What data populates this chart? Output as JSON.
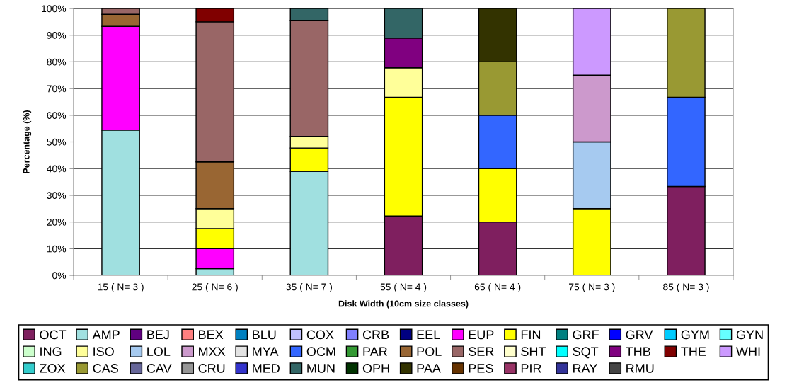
{
  "chart_data": {
    "type": "bar",
    "stacked": true,
    "xlabel": "Disk Width (10cm size classes)",
    "ylabel": "Percentage (%)",
    "categories": [
      "15 ( N= 3 )",
      "25 ( N= 6 )",
      "35 ( N= 7 )",
      "55 ( N= 4 )",
      "65 ( N= 4 )",
      "75 ( N= 3 )",
      "85 ( N= 3 )"
    ],
    "ylim": [
      0,
      100
    ],
    "yticks": [
      {
        "value": 0,
        "label": "0%"
      },
      {
        "value": 10,
        "label": "10%"
      },
      {
        "value": 20,
        "label": "20%"
      },
      {
        "value": 30,
        "label": "30%"
      },
      {
        "value": 40,
        "label": "40%"
      },
      {
        "value": 50,
        "label": "50%"
      },
      {
        "value": 60,
        "label": "60%"
      },
      {
        "value": 70,
        "label": "70%"
      },
      {
        "value": 80,
        "label": "80%"
      },
      {
        "value": 90,
        "label": "90%"
      },
      {
        "value": 100,
        "label": "100%"
      }
    ],
    "grid": "y",
    "legend": "bottom",
    "series": [
      {
        "name": "OCT",
        "color": "#7f1f5f",
        "values": [
          null,
          null,
          null,
          22.2,
          20,
          null,
          33.3
        ]
      },
      {
        "name": "AMP",
        "color": "#a0e0e0",
        "values": [
          54.4,
          2.5,
          39.0,
          null,
          null,
          null,
          null
        ]
      },
      {
        "name": "BEJ",
        "color": "#600080",
        "values": [
          null,
          null,
          null,
          null,
          null,
          null,
          null
        ]
      },
      {
        "name": "BEX",
        "color": "#ff8080",
        "values": [
          null,
          null,
          null,
          null,
          null,
          null,
          null
        ]
      },
      {
        "name": "BLU",
        "color": "#0080c0",
        "values": [
          null,
          null,
          null,
          null,
          null,
          null,
          null
        ]
      },
      {
        "name": "COX",
        "color": "#c0c0ff",
        "values": [
          null,
          null,
          null,
          null,
          null,
          null,
          null
        ]
      },
      {
        "name": "CRB",
        "color": "#8080ff",
        "values": [
          null,
          null,
          null,
          null,
          null,
          null,
          null
        ]
      },
      {
        "name": "EEL",
        "color": "#000080",
        "values": [
          null,
          null,
          null,
          null,
          null,
          null,
          null
        ]
      },
      {
        "name": "EUP",
        "color": "#ff00ff",
        "values": [
          38.9,
          7.5,
          null,
          null,
          null,
          null,
          null
        ]
      },
      {
        "name": "FIN",
        "color": "#ffff00",
        "values": [
          null,
          7.5,
          8.7,
          44.5,
          20,
          25,
          null
        ]
      },
      {
        "name": "GRF",
        "color": "#008080",
        "values": [
          null,
          null,
          null,
          null,
          null,
          null,
          null
        ]
      },
      {
        "name": "GRV",
        "color": "#0000ff",
        "values": [
          null,
          null,
          null,
          null,
          null,
          null,
          null
        ]
      },
      {
        "name": "GYM",
        "color": "#00ccff",
        "values": [
          null,
          null,
          null,
          null,
          null,
          null,
          null
        ]
      },
      {
        "name": "GYN",
        "color": "#66ffff",
        "values": [
          null,
          null,
          null,
          null,
          null,
          null,
          null
        ]
      },
      {
        "name": "ING",
        "color": "#ccffcc",
        "values": [
          null,
          null,
          null,
          null,
          null,
          null,
          null
        ]
      },
      {
        "name": "ISO",
        "color": "#ffff99",
        "values": [
          null,
          7.5,
          4.4,
          11.1,
          null,
          null,
          null
        ]
      },
      {
        "name": "LOL",
        "color": "#a6caf0",
        "values": [
          null,
          null,
          null,
          null,
          null,
          25,
          null
        ]
      },
      {
        "name": "MXX",
        "color": "#cc99cc",
        "values": [
          null,
          null,
          null,
          null,
          null,
          25,
          null
        ]
      },
      {
        "name": "MYA",
        "color": "#e3e3e3",
        "values": [
          null,
          null,
          null,
          null,
          null,
          null,
          null
        ]
      },
      {
        "name": "OCM",
        "color": "#3366ff",
        "values": [
          null,
          null,
          null,
          null,
          20,
          null,
          33.4
        ]
      },
      {
        "name": "PAR",
        "color": "#339933",
        "values": [
          null,
          null,
          null,
          null,
          null,
          null,
          null
        ]
      },
      {
        "name": "POL",
        "color": "#996633",
        "values": [
          4.5,
          17.5,
          null,
          null,
          null,
          null,
          null
        ]
      },
      {
        "name": "SER",
        "color": "#996666",
        "values": [
          2.2,
          52.5,
          43.5,
          null,
          null,
          null,
          null
        ]
      },
      {
        "name": "SHT",
        "color": "#ffffcc",
        "values": [
          null,
          null,
          null,
          null,
          null,
          null,
          null
        ]
      },
      {
        "name": "SQT",
        "color": "#00ffff",
        "values": [
          null,
          null,
          null,
          null,
          null,
          null,
          null
        ]
      },
      {
        "name": "THB",
        "color": "#800080",
        "values": [
          null,
          null,
          null,
          11.1,
          null,
          null,
          null
        ]
      },
      {
        "name": "THE",
        "color": "#800000",
        "values": [
          null,
          5,
          null,
          null,
          null,
          null,
          null
        ]
      },
      {
        "name": "WHI",
        "color": "#cc99ff",
        "values": [
          null,
          null,
          null,
          null,
          null,
          25,
          null
        ]
      },
      {
        "name": "ZOX",
        "color": "#33cccc",
        "values": [
          null,
          null,
          null,
          null,
          null,
          null,
          null
        ]
      },
      {
        "name": "CAS",
        "color": "#999933",
        "values": [
          null,
          null,
          null,
          null,
          20,
          null,
          33.3
        ]
      },
      {
        "name": "CAV",
        "color": "#666699",
        "values": [
          null,
          null,
          null,
          null,
          null,
          null,
          null
        ]
      },
      {
        "name": "CRU",
        "color": "#969696",
        "values": [
          null,
          null,
          null,
          null,
          null,
          null,
          null
        ]
      },
      {
        "name": "MED",
        "color": "#3333cc",
        "values": [
          null,
          null,
          null,
          null,
          null,
          null,
          null
        ]
      },
      {
        "name": "MUN",
        "color": "#336666",
        "values": [
          null,
          null,
          4.4,
          11.1,
          null,
          null,
          null
        ]
      },
      {
        "name": "OPH",
        "color": "#003300",
        "values": [
          null,
          null,
          null,
          null,
          null,
          null,
          null
        ]
      },
      {
        "name": "PAA",
        "color": "#333300",
        "values": [
          null,
          null,
          null,
          null,
          20,
          null,
          null
        ]
      },
      {
        "name": "PES",
        "color": "#663300",
        "values": [
          null,
          null,
          null,
          null,
          null,
          null,
          null
        ]
      },
      {
        "name": "PIR",
        "color": "#993366",
        "values": [
          null,
          null,
          null,
          null,
          null,
          null,
          null
        ]
      },
      {
        "name": "RAY",
        "color": "#333399",
        "values": [
          null,
          null,
          null,
          null,
          null,
          null,
          null
        ]
      },
      {
        "name": "RMU",
        "color": "#444444",
        "values": [
          null,
          null,
          null,
          null,
          null,
          null,
          null
        ]
      }
    ]
  }
}
